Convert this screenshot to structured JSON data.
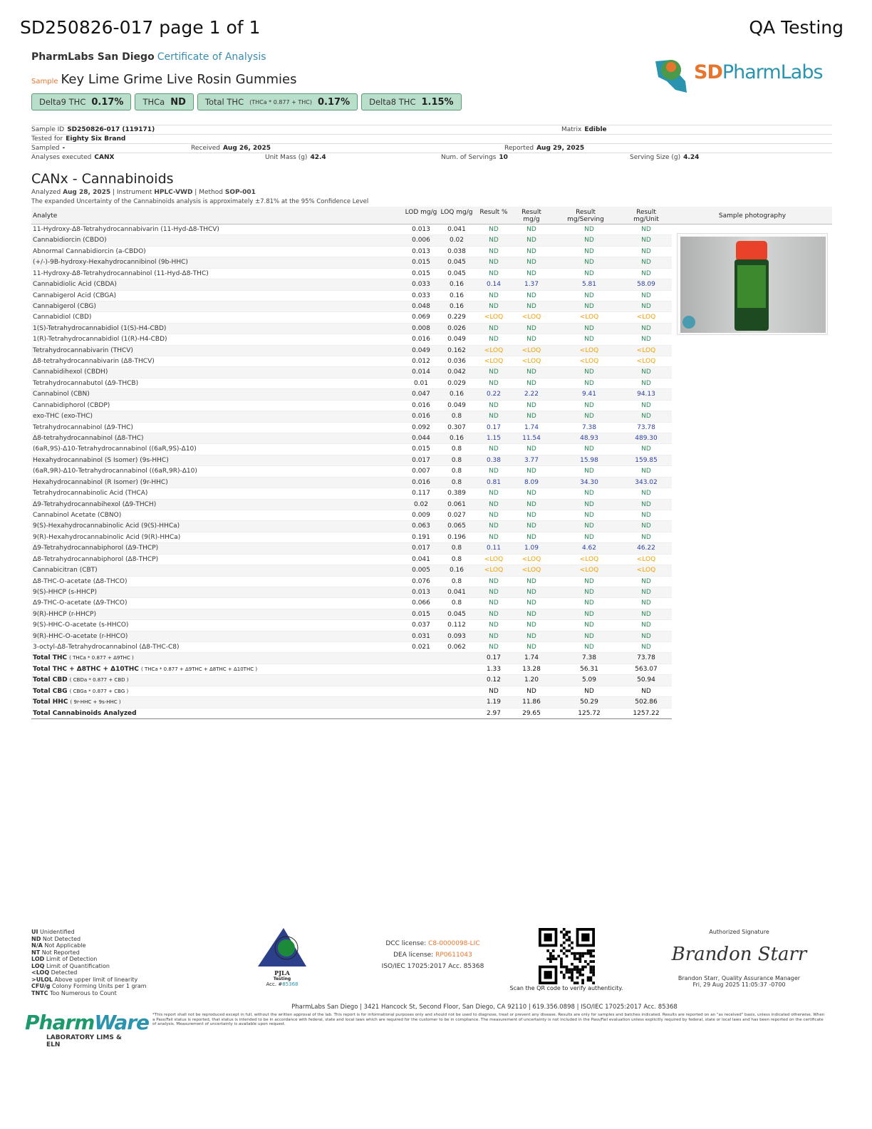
{
  "header": {
    "doc_title": "SD250826-017 page 1 of 1",
    "right_title": "QA Testing",
    "lab": "PharmLabs San Diego",
    "coa": "Certificate of Analysis",
    "sample_label": "Sample",
    "sample_name": "Key Lime Grime Live Rosin Gummies",
    "logo_text": "SDPharmLabs"
  },
  "badges": [
    {
      "label": "Delta9 THC",
      "note": "",
      "value": "0.17%"
    },
    {
      "label": "THCa",
      "note": "",
      "value": "ND"
    },
    {
      "label": "Total THC",
      "note": "(THCa * 0.877 + THC)",
      "value": "0.17%"
    },
    {
      "label": "Delta8 THC",
      "note": "",
      "value": "1.15%"
    }
  ],
  "info": {
    "sample_id_label": "Sample ID",
    "sample_id": "SD250826-017 (119171)",
    "matrix_label": "Matrix",
    "matrix": "Edible",
    "tested_for_label": "Tested for",
    "tested_for": "Eighty Six Brand",
    "sampled_label": "Sampled",
    "sampled": "-",
    "received_label": "Received",
    "received": "Aug 26, 2025",
    "reported_label": "Reported",
    "reported": "Aug 29, 2025",
    "analyses_label": "Analyses executed",
    "analyses": "CANX",
    "unit_mass_label": "Unit Mass (g)",
    "unit_mass": "42.4",
    "servings_label": "Num. of Servings",
    "servings": "10",
    "serving_size_label": "Serving Size (g)",
    "serving_size": "4.24"
  },
  "section": {
    "title": "CANx - Cannabinoids",
    "analyzed_label": "Analyzed",
    "analyzed": "Aug 28, 2025",
    "instrument_label": "Instrument",
    "instrument": "HPLC-VWD",
    "method_label": "Method",
    "method": "SOP-001",
    "uncertainty": "The expanded Uncertainty of the Cannabinoids analysis is approximately ±7.81% at the 95% Confidence Level"
  },
  "table": {
    "headers": [
      "Analyte",
      "LOD mg/g",
      "LOQ mg/g",
      "Result %",
      "Result mg/g",
      "Result mg/Serving",
      "Result mg/Unit",
      "Sample photography"
    ],
    "rows": [
      [
        "11-Hydroxy-Δ8-Tetrahydrocannabivarin (11-Hyd-Δ8-THCV)",
        "0.013",
        "0.041",
        "ND",
        "ND",
        "ND",
        "ND"
      ],
      [
        "Cannabidiorcin (CBDO)",
        "0.006",
        "0.02",
        "ND",
        "ND",
        "ND",
        "ND"
      ],
      [
        "Abnormal Cannabidiorcin (a-CBDO)",
        "0.013",
        "0.038",
        "ND",
        "ND",
        "ND",
        "ND"
      ],
      [
        "(+/-)-9B-hydroxy-Hexahydrocannibinol (9b-HHC)",
        "0.015",
        "0.045",
        "ND",
        "ND",
        "ND",
        "ND"
      ],
      [
        "11-Hydroxy-Δ8-Tetrahydrocannabinol (11-Hyd-Δ8-THC)",
        "0.015",
        "0.045",
        "ND",
        "ND",
        "ND",
        "ND"
      ],
      [
        "Cannabidiolic Acid (CBDA)",
        "0.033",
        "0.16",
        "0.14",
        "1.37",
        "5.81",
        "58.09"
      ],
      [
        "Cannabigerol Acid (CBGA)",
        "0.033",
        "0.16",
        "ND",
        "ND",
        "ND",
        "ND"
      ],
      [
        "Cannabigerol (CBG)",
        "0.048",
        "0.16",
        "ND",
        "ND",
        "ND",
        "ND"
      ],
      [
        "Cannabidiol (CBD)",
        "0.069",
        "0.229",
        "<LOQ",
        "<LOQ",
        "<LOQ",
        "<LOQ"
      ],
      [
        "1(S)-Tetrahydrocannabidiol (1(S)-H4-CBD)",
        "0.008",
        "0.026",
        "ND",
        "ND",
        "ND",
        "ND"
      ],
      [
        "1(R)-Tetrahydrocannabidiol (1(R)-H4-CBD)",
        "0.016",
        "0.049",
        "ND",
        "ND",
        "ND",
        "ND"
      ],
      [
        "Tetrahydrocannabivarin (THCV)",
        "0.049",
        "0.162",
        "<LOQ",
        "<LOQ",
        "<LOQ",
        "<LOQ"
      ],
      [
        "Δ8-tetrahydrocannabivarin (Δ8-THCV)",
        "0.012",
        "0.036",
        "<LOQ",
        "<LOQ",
        "<LOQ",
        "<LOQ"
      ],
      [
        "Cannabidihexol (CBDH)",
        "0.014",
        "0.042",
        "ND",
        "ND",
        "ND",
        "ND"
      ],
      [
        "Tetrahydrocannabutol (Δ9-THCB)",
        "0.01",
        "0.029",
        "ND",
        "ND",
        "ND",
        "ND"
      ],
      [
        "Cannabinol (CBN)",
        "0.047",
        "0.16",
        "0.22",
        "2.22",
        "9.41",
        "94.13"
      ],
      [
        "Cannabidiphorol (CBDP)",
        "0.016",
        "0.049",
        "ND",
        "ND",
        "ND",
        "ND"
      ],
      [
        "exo-THC (exo-THC)",
        "0.016",
        "0.8",
        "ND",
        "ND",
        "ND",
        "ND"
      ],
      [
        "Tetrahydrocannabinol (Δ9-THC)",
        "0.092",
        "0.307",
        "0.17",
        "1.74",
        "7.38",
        "73.78"
      ],
      [
        "Δ8-tetrahydrocannabinol (Δ8-THC)",
        "0.044",
        "0.16",
        "1.15",
        "11.54",
        "48.93",
        "489.30"
      ],
      [
        "(6aR,9S)-Δ10-Tetrahydrocannabinol ((6aR,9S)-Δ10)",
        "0.015",
        "0.8",
        "ND",
        "ND",
        "ND",
        "ND"
      ],
      [
        "Hexahydrocannabinol (S Isomer) (9s-HHC)",
        "0.017",
        "0.8",
        "0.38",
        "3.77",
        "15.98",
        "159.85"
      ],
      [
        "(6aR,9R)-Δ10-Tetrahydrocannabinol ((6aR,9R)-Δ10)",
        "0.007",
        "0.8",
        "ND",
        "ND",
        "ND",
        "ND"
      ],
      [
        "Hexahydrocannabinol (R Isomer) (9r-HHC)",
        "0.016",
        "0.8",
        "0.81",
        "8.09",
        "34.30",
        "343.02"
      ],
      [
        "Tetrahydrocannabinolic Acid (THCA)",
        "0.117",
        "0.389",
        "ND",
        "ND",
        "ND",
        "ND"
      ],
      [
        "Δ9-Tetrahydrocannabihexol (Δ9-THCH)",
        "0.02",
        "0.061",
        "ND",
        "ND",
        "ND",
        "ND"
      ],
      [
        "Cannabinol Acetate (CBNO)",
        "0.009",
        "0.027",
        "ND",
        "ND",
        "ND",
        "ND"
      ],
      [
        "9(S)-Hexahydrocannabinolic Acid (9(S)-HHCa)",
        "0.063",
        "0.065",
        "ND",
        "ND",
        "ND",
        "ND"
      ],
      [
        "9(R)-Hexahydrocannabinolic Acid (9(R)-HHCa)",
        "0.191",
        "0.196",
        "ND",
        "ND",
        "ND",
        "ND"
      ],
      [
        "Δ9-Tetrahydrocannabiphorol (Δ9-THCP)",
        "0.017",
        "0.8",
        "0.11",
        "1.09",
        "4.62",
        "46.22"
      ],
      [
        "Δ8-Tetrahydrocannabiphorol (Δ8-THCP)",
        "0.041",
        "0.8",
        "<LOQ",
        "<LOQ",
        "<LOQ",
        "<LOQ"
      ],
      [
        "Cannabicitran (CBT)",
        "0.005",
        "0.16",
        "<LOQ",
        "<LOQ",
        "<LOQ",
        "<LOQ"
      ],
      [
        "Δ8-THC-O-acetate (Δ8-THCO)",
        "0.076",
        "0.8",
        "ND",
        "ND",
        "ND",
        "ND"
      ],
      [
        "9(S)-HHCP (s-HHCP)",
        "0.013",
        "0.041",
        "ND",
        "ND",
        "ND",
        "ND"
      ],
      [
        "Δ9-THC-O-acetate (Δ9-THCO)",
        "0.066",
        "0.8",
        "ND",
        "ND",
        "ND",
        "ND"
      ],
      [
        "9(R)-HHCP (r-HHCP)",
        "0.015",
        "0.045",
        "ND",
        "ND",
        "ND",
        "ND"
      ],
      [
        "9(S)-HHC-O-acetate (s-HHCO)",
        "0.037",
        "0.112",
        "ND",
        "ND",
        "ND",
        "ND"
      ],
      [
        "9(R)-HHC-O-acetate (r-HHCO)",
        "0.031",
        "0.093",
        "ND",
        "ND",
        "ND",
        "ND"
      ],
      [
        "3-octyl-Δ8-Tetrahydrocannabinol (Δ8-THC-C8)",
        "0.021",
        "0.062",
        "ND",
        "ND",
        "ND",
        "ND"
      ]
    ],
    "totals": [
      {
        "label": "Total THC",
        "formula": "( THCa * 0.877 + Δ9THC )",
        "values": [
          "0.17",
          "1.74",
          "7.38",
          "73.78"
        ]
      },
      {
        "label": "Total THC + Δ8THC + Δ10THC",
        "formula": "( THCa * 0.877 + Δ9THC + Δ8THC + Δ10THC )",
        "values": [
          "1.33",
          "13.28",
          "56.31",
          "563.07"
        ]
      },
      {
        "label": "Total CBD",
        "formula": "( CBDa * 0.877 + CBD )",
        "values": [
          "0.12",
          "1.20",
          "5.09",
          "50.94"
        ]
      },
      {
        "label": "Total CBG",
        "formula": "( CBGa * 0.877 + CBG )",
        "values": [
          "ND",
          "ND",
          "ND",
          "ND"
        ]
      },
      {
        "label": "Total HHC",
        "formula": "( 9r-HHC + 9s-HHC )",
        "values": [
          "1.19",
          "11.86",
          "50.29",
          "502.86"
        ]
      },
      {
        "label": "Total Cannabinoids Analyzed",
        "formula": "",
        "values": [
          "2.97",
          "29.65",
          "125.72",
          "1257.22"
        ]
      }
    ]
  },
  "colors": {
    "nd": "#2a8a5a",
    "loq": "#f0a000",
    "num": "#2c3fa0",
    "accent": "#e8752e",
    "brand": "#2a94b0",
    "badge": "#b9dfcb"
  },
  "footer": {
    "legend": [
      [
        "UI",
        "Unidentified"
      ],
      [
        "ND",
        "Not Detected"
      ],
      [
        "N/A",
        "Not Applicable"
      ],
      [
        "NT",
        "Not Reported"
      ],
      [
        "LOD",
        "Limit of Detection"
      ],
      [
        "LOQ",
        "Limit of Quantification"
      ],
      [
        "<LOQ",
        "Detected"
      ],
      [
        ">ULOL",
        "Above upper limit of linearity"
      ],
      [
        "CFU/g",
        "Colony Forming Units per 1 gram"
      ],
      [
        "TNTC",
        "Too Numerous to Count"
      ]
    ],
    "pjla_name": "PJLA",
    "pjla_sub": "Testing",
    "pjla_acc_label": "Acc. #",
    "pjla_acc": "85368",
    "dcc_label": "DCC license:",
    "dcc": "C8-0000098-LIC",
    "dea_label": "DEA license:",
    "dea": "RP0611043",
    "iso": "ISO/IEC 17025:2017 Acc. 85368",
    "qr_caption": "Scan the QR code to verify authenticity.",
    "sig_title": "Authorized Signature",
    "signature": "Brandon Starr",
    "signer": "Brandon Starr, Quality Assurance Manager",
    "sig_date": "Fri, 29 Aug 2025 11:05:37 -0700",
    "address": "PharmLabs San Diego | 3421 Hancock St, Second Floor, San Diego, CA 92110 | 619.356.0898 | ISO/IEC 17025:2017 Acc. 85368",
    "disclaimer": "*This report shall not be reproduced except in full, without the written approval of the lab. This report is for informational purposes only and should not be used to diagnose, treat or prevent any disease. Results are only for samples and batches indicated. Results are reported on an \"as received\" basis, unless indicated otherwise. When a Pass/Fail status is reported, that status is intended to be in accordance with federal, state and local laws which are required for the customer to be in compliance. The measurement of uncertainty is not included in the Pass/Fail evaluation unless explicitly required by federal, state or local laws and has been reported on the certificate of analysis. Measurement of uncertainty is available upon request.",
    "pw_logo": "PharmWare",
    "pw_sub": "LABORATORY LIMS & ELN"
  }
}
